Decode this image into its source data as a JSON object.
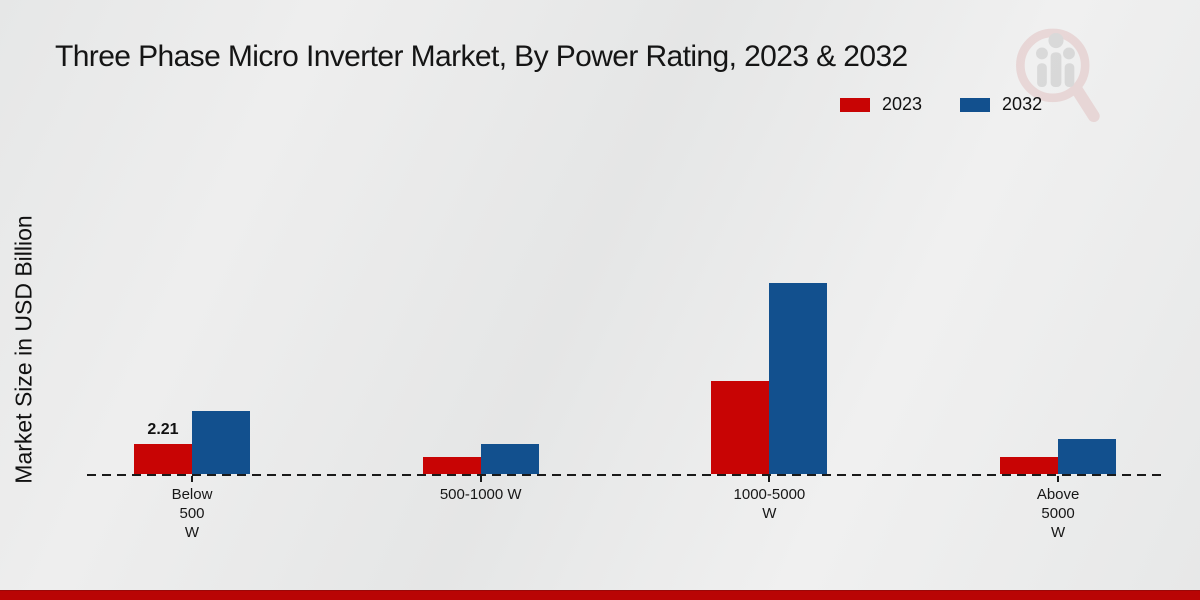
{
  "header": {
    "title": "Three Phase Micro Inverter Market, By Power Rating, 2023 & 2032"
  },
  "chart_data": {
    "type": "bar",
    "title": "Three Phase Micro Inverter Market, By Power Rating, 2023 & 2032",
    "xlabel": "",
    "ylabel": "Market Size in USD Billion",
    "categories": [
      "Below 500 W",
      "500-1000 W",
      "1000-5000 W",
      "Above 5000 W"
    ],
    "category_label_lines": [
      [
        "Below",
        "500",
        "W"
      ],
      [
        "500-1000 W"
      ],
      [
        "1000-5000",
        "W"
      ],
      [
        "Above",
        "5000",
        "W"
      ]
    ],
    "series": [
      {
        "name": "2023",
        "color": "#c80404",
        "values": [
          2.21,
          1.25,
          6.85,
          1.25
        ],
        "data_labels": [
          "2.21",
          "",
          "",
          ""
        ]
      },
      {
        "name": "2032",
        "color": "#12508e",
        "values": [
          4.65,
          2.2,
          14.1,
          2.6
        ],
        "data_labels": [
          "",
          "",
          "",
          ""
        ]
      }
    ],
    "ylim": [
      0,
      15
    ],
    "grid": false,
    "y_axis_ticks_visible": false,
    "baseline_style": "dashed",
    "legend_position": "top-right"
  },
  "footer": {
    "strip_color": "#b90505"
  },
  "watermark": {
    "icon": "magnifier-bar-chart-logo",
    "ring_color": "#e2c3c3",
    "bars_color": "#c7c7c7"
  }
}
